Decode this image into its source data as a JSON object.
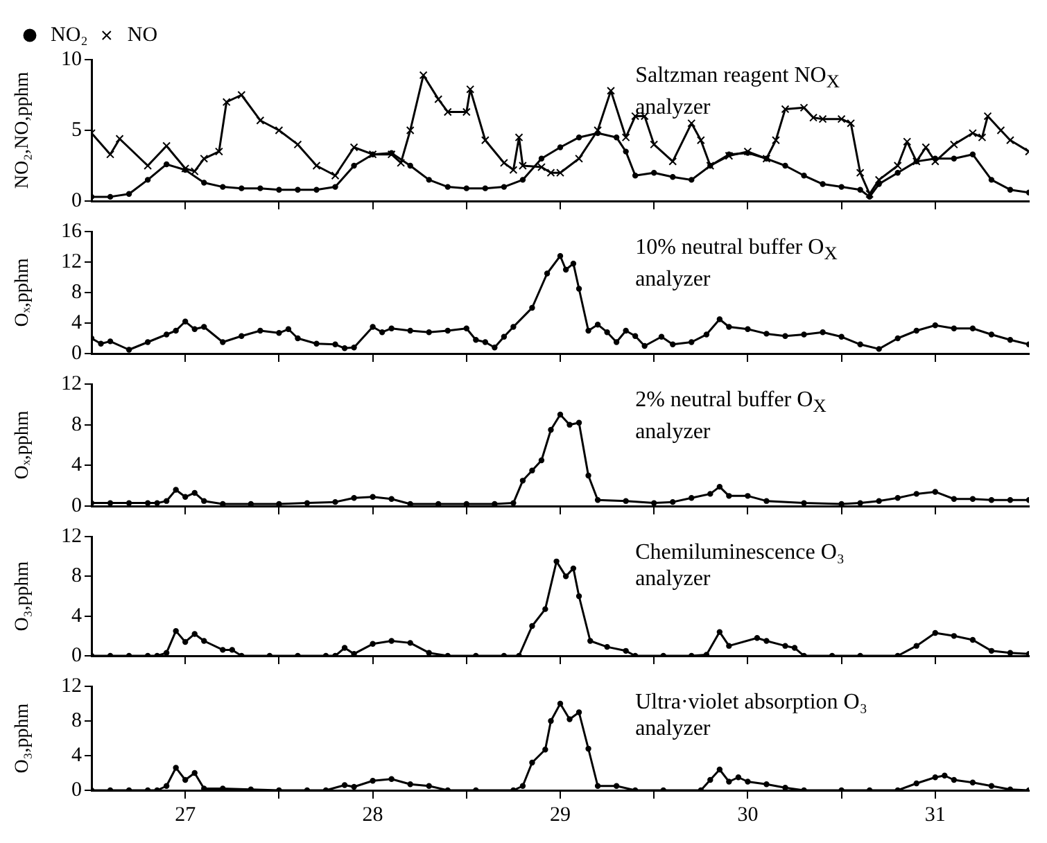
{
  "chart_data": [
    {
      "type": "line",
      "ylabel": "NO₂,NO,pphm",
      "annotations": [
        "Saltzman reagent NO$_{X}$ analyzer"
      ],
      "legend": "top left",
      "tick_labels": "y",
      "xlim": [
        26.5,
        31.5
      ],
      "xticks": [
        27,
        {
          "value": 27.5,
          "label": null
        },
        28,
        {
          "value": 28.5,
          "label": null
        },
        29,
        {
          "value": 29.5,
          "label": null
        },
        30,
        {
          "value": 30.5,
          "label": null
        },
        31
      ],
      "ylim": [
        0,
        10
      ],
      "yticks": [
        0,
        5,
        10
      ],
      "series": [
        {
          "name": "NO₂",
          "color": "#000000",
          "marker": "circle",
          "x": [
            26.5,
            26.6,
            26.7,
            26.8,
            26.9,
            27.0,
            27.1,
            27.2,
            27.3,
            27.4,
            27.5,
            27.6,
            27.7,
            27.8,
            27.9,
            28.0,
            28.1,
            28.2,
            28.3,
            28.4,
            28.5,
            28.6,
            28.7,
            28.8,
            28.9,
            29.0,
            29.1,
            29.2,
            29.3,
            29.35,
            29.4,
            29.5,
            29.6,
            29.7,
            29.8,
            29.9,
            30.0,
            30.1,
            30.2,
            30.3,
            30.4,
            30.5,
            30.6,
            30.65,
            30.7,
            30.8,
            30.9,
            31.0,
            31.1,
            31.2,
            31.3,
            31.4,
            31.5
          ],
          "values": [
            0.3,
            0.3,
            0.5,
            1.5,
            2.6,
            2.2,
            1.3,
            1.0,
            0.9,
            0.9,
            0.8,
            0.8,
            0.8,
            1.0,
            2.5,
            3.3,
            3.4,
            2.5,
            1.5,
            1.0,
            0.9,
            0.9,
            1.0,
            1.5,
            3.0,
            3.8,
            4.5,
            4.8,
            4.5,
            3.5,
            1.8,
            2.0,
            1.7,
            1.5,
            2.5,
            3.3,
            3.4,
            3.0,
            2.5,
            1.8,
            1.2,
            1.0,
            0.8,
            0.3,
            1.2,
            2.0,
            2.8,
            3.0,
            3.0,
            3.3,
            1.5,
            0.8,
            0.6
          ]
        },
        {
          "name": "NO",
          "color": "#000000",
          "marker": "cross",
          "x": [
            26.5,
            26.6,
            26.65,
            26.8,
            26.9,
            27.0,
            27.05,
            27.1,
            27.18,
            27.22,
            27.3,
            27.4,
            27.5,
            27.6,
            27.7,
            27.8,
            27.9,
            28.0,
            28.1,
            28.15,
            28.2,
            28.27,
            28.35,
            28.4,
            28.5,
            28.52,
            28.6,
            28.7,
            28.75,
            28.78,
            28.8,
            28.9,
            28.95,
            29.0,
            29.1,
            29.2,
            29.27,
            29.35,
            29.4,
            29.45,
            29.5,
            29.6,
            29.7,
            29.75,
            29.8,
            29.9,
            30.0,
            30.1,
            30.15,
            30.2,
            30.3,
            30.35,
            30.4,
            30.5,
            30.55,
            30.6,
            30.65,
            30.7,
            30.8,
            30.85,
            30.9,
            30.95,
            31.0,
            31.1,
            31.2,
            31.25,
            31.28,
            31.35,
            31.4,
            31.5
          ],
          "values": [
            4.8,
            3.3,
            4.4,
            2.5,
            3.9,
            2.3,
            2.1,
            3.0,
            3.5,
            7.0,
            7.5,
            5.7,
            5.0,
            4.0,
            2.5,
            1.8,
            3.8,
            3.3,
            3.3,
            2.7,
            5.0,
            8.9,
            7.2,
            6.3,
            6.3,
            7.9,
            4.3,
            2.7,
            2.2,
            4.5,
            2.5,
            2.4,
            2.0,
            2.0,
            3.0,
            5.0,
            7.8,
            4.5,
            6.0,
            6.0,
            4.0,
            2.8,
            5.5,
            4.3,
            2.5,
            3.2,
            3.5,
            3.0,
            4.3,
            6.5,
            6.6,
            5.9,
            5.8,
            5.8,
            5.5,
            2.0,
            0.5,
            1.5,
            2.5,
            4.2,
            2.8,
            3.8,
            2.8,
            4.0,
            4.8,
            4.5,
            6.0,
            5.0,
            4.3,
            3.5
          ]
        }
      ]
    },
    {
      "type": "line",
      "ylabel": "Oₓ,pphm",
      "annotations": [
        "10% neutral buffer O$_{X}$ analyzer"
      ],
      "marker": "circle",
      "tick_labels": "y",
      "xlim": [
        26.5,
        31.5
      ],
      "xticks": [
        27,
        {
          "value": 27.5,
          "label": null
        },
        28,
        {
          "value": 28.5,
          "label": null
        },
        29,
        {
          "value": 29.5,
          "label": null
        },
        30,
        {
          "value": 30.5,
          "label": null
        },
        31
      ],
      "ylim": [
        0,
        16
      ],
      "yticks": [
        0,
        4,
        8,
        12,
        16
      ],
      "series": [
        {
          "color": "#000000",
          "x": [
            26.5,
            26.55,
            26.6,
            26.7,
            26.8,
            26.9,
            26.95,
            27.0,
            27.05,
            27.1,
            27.2,
            27.3,
            27.4,
            27.5,
            27.55,
            27.6,
            27.7,
            27.8,
            27.85,
            27.9,
            28.0,
            28.05,
            28.1,
            28.2,
            28.3,
            28.4,
            28.5,
            28.55,
            28.6,
            28.65,
            28.7,
            28.75,
            28.85,
            28.93,
            29.0,
            29.03,
            29.07,
            29.1,
            29.15,
            29.2,
            29.25,
            29.3,
            29.35,
            29.4,
            29.45,
            29.54,
            29.6,
            29.7,
            29.78,
            29.85,
            29.9,
            30.0,
            30.1,
            30.2,
            30.3,
            30.4,
            30.5,
            30.6,
            30.7,
            30.8,
            30.9,
            31.0,
            31.1,
            31.2,
            31.3,
            31.4,
            31.5
          ],
          "values": [
            2.0,
            1.3,
            1.6,
            0.5,
            1.5,
            2.5,
            3.0,
            4.2,
            3.2,
            3.5,
            1.5,
            2.3,
            3.0,
            2.7,
            3.2,
            2.0,
            1.3,
            1.2,
            0.7,
            0.8,
            3.5,
            2.8,
            3.3,
            3.0,
            2.8,
            3.0,
            3.3,
            1.8,
            1.5,
            0.8,
            2.2,
            3.5,
            6.0,
            10.5,
            12.8,
            11.0,
            11.8,
            8.5,
            3.0,
            3.8,
            2.8,
            1.5,
            3.0,
            2.3,
            1.0,
            2.2,
            1.2,
            1.5,
            2.5,
            4.5,
            3.5,
            3.2,
            2.6,
            2.3,
            2.5,
            2.8,
            2.2,
            1.2,
            0.6,
            2.0,
            3.0,
            3.7,
            3.3,
            3.3,
            2.5,
            1.8,
            1.2
          ]
        }
      ]
    },
    {
      "type": "line",
      "ylabel": "Oₓ,pphm",
      "annotations": [
        "2% neutral buffer O$_{X}$ analyzer"
      ],
      "marker": "circle",
      "tick_labels": "y",
      "xlim": [
        26.5,
        31.5
      ],
      "xticks": [
        27,
        {
          "value": 27.5,
          "label": null
        },
        28,
        {
          "value": 28.5,
          "label": null
        },
        29,
        {
          "value": 29.5,
          "label": null
        },
        30,
        {
          "value": 30.5,
          "label": null
        },
        31
      ],
      "ylim": [
        0,
        12
      ],
      "yticks": [
        0,
        4,
        8,
        12
      ],
      "series": [
        {
          "color": "#000000",
          "x": [
            26.5,
            26.6,
            26.7,
            26.8,
            26.85,
            26.9,
            26.95,
            27.0,
            27.05,
            27.1,
            27.2,
            27.35,
            27.5,
            27.65,
            27.8,
            27.9,
            28.0,
            28.1,
            28.2,
            28.35,
            28.5,
            28.65,
            28.75,
            28.8,
            28.85,
            28.9,
            28.95,
            29.0,
            29.05,
            29.1,
            29.15,
            29.2,
            29.35,
            29.5,
            29.6,
            29.7,
            29.8,
            29.85,
            29.9,
            30.0,
            30.1,
            30.3,
            30.5,
            30.6,
            30.7,
            30.8,
            30.9,
            31.0,
            31.1,
            31.2,
            31.3,
            31.4,
            31.5
          ],
          "values": [
            0.3,
            0.3,
            0.3,
            0.3,
            0.3,
            0.5,
            1.6,
            0.9,
            1.3,
            0.5,
            0.2,
            0.2,
            0.2,
            0.3,
            0.4,
            0.8,
            0.9,
            0.7,
            0.2,
            0.2,
            0.2,
            0.2,
            0.3,
            2.5,
            3.5,
            4.5,
            7.5,
            9.0,
            8.0,
            8.2,
            3.0,
            0.6,
            0.5,
            0.3,
            0.4,
            0.8,
            1.2,
            1.9,
            1.0,
            1.0,
            0.5,
            0.3,
            0.2,
            0.3,
            0.5,
            0.8,
            1.2,
            1.4,
            0.7,
            0.7,
            0.6,
            0.6,
            0.6
          ]
        }
      ]
    },
    {
      "type": "line",
      "ylabel": "O₃,pphm",
      "annotations": [
        "Chemiluminescence O₃ analyzer"
      ],
      "marker": "circle",
      "tick_labels": "y",
      "xlim": [
        26.5,
        31.5
      ],
      "xticks": [
        27,
        {
          "value": 27.5,
          "label": null
        },
        28,
        {
          "value": 28.5,
          "label": null
        },
        29,
        {
          "value": 29.5,
          "label": null
        },
        30,
        {
          "value": 30.5,
          "label": null
        },
        31
      ],
      "ylim": [
        0,
        12
      ],
      "yticks": [
        0,
        4,
        8,
        12
      ],
      "series": [
        {
          "color": "#000000",
          "x": [
            26.5,
            26.6,
            26.7,
            26.8,
            26.85,
            26.9,
            26.95,
            27.0,
            27.05,
            27.1,
            27.2,
            27.25,
            27.3,
            27.45,
            27.6,
            27.75,
            27.8,
            27.85,
            27.9,
            28.0,
            28.1,
            28.2,
            28.3,
            28.4,
            28.55,
            28.7,
            28.78,
            28.85,
            28.92,
            28.98,
            29.03,
            29.07,
            29.1,
            29.16,
            29.25,
            29.35,
            29.4,
            29.55,
            29.7,
            29.78,
            29.85,
            29.9,
            30.05,
            30.1,
            30.2,
            30.25,
            30.3,
            30.45,
            30.6,
            30.8,
            30.9,
            31.0,
            31.1,
            31.2,
            31.3,
            31.4,
            31.5
          ],
          "values": [
            0,
            0,
            0,
            0,
            0,
            0.3,
            2.5,
            1.4,
            2.2,
            1.5,
            0.6,
            0.6,
            0,
            0,
            0,
            0,
            0,
            0.8,
            0.2,
            1.2,
            1.5,
            1.3,
            0.3,
            0,
            0,
            0,
            0,
            3.0,
            4.7,
            9.5,
            8.0,
            8.8,
            6.0,
            1.5,
            0.9,
            0.5,
            0,
            0,
            0,
            0.1,
            2.4,
            1.0,
            1.8,
            1.5,
            1.0,
            0.8,
            0,
            0,
            0,
            0,
            1.0,
            2.3,
            2.0,
            1.6,
            0.5,
            0.3,
            0.2
          ]
        }
      ]
    },
    {
      "type": "line",
      "ylabel": "O₃,pphm",
      "annotations": [
        "Ultra·violet  absorption O₃ analyzer"
      ],
      "marker": "circle",
      "xlim": [
        26.5,
        31.5
      ],
      "xticks": [
        27,
        {
          "value": 27.5,
          "label": null
        },
        28,
        {
          "value": 28.5,
          "label": null
        },
        29,
        {
          "value": 29.5,
          "label": null
        },
        30,
        {
          "value": 30.5,
          "label": null
        },
        31
      ],
      "ylim": [
        0,
        12
      ],
      "yticks": [
        0,
        4,
        8,
        12
      ],
      "series": [
        {
          "color": "#000000",
          "x": [
            26.5,
            26.6,
            26.7,
            26.8,
            26.85,
            26.9,
            26.95,
            27.0,
            27.05,
            27.1,
            27.2,
            27.35,
            27.5,
            27.65,
            27.75,
            27.85,
            27.9,
            28.0,
            28.1,
            28.2,
            28.3,
            28.4,
            28.55,
            28.75,
            28.8,
            28.85,
            28.92,
            28.95,
            29.0,
            29.05,
            29.1,
            29.15,
            29.2,
            29.3,
            29.4,
            29.55,
            29.75,
            29.8,
            29.85,
            29.9,
            29.95,
            30.0,
            30.1,
            30.2,
            30.3,
            30.5,
            30.65,
            30.8,
            30.9,
            31.0,
            31.05,
            31.1,
            31.2,
            31.3,
            31.4,
            31.5
          ],
          "values": [
            0,
            0,
            0,
            0,
            0,
            0.5,
            2.6,
            1.2,
            2.0,
            0.2,
            0.2,
            0.1,
            0,
            0,
            0,
            0.6,
            0.4,
            1.1,
            1.3,
            0.7,
            0.5,
            0,
            0,
            0,
            0.5,
            3.2,
            4.7,
            8.0,
            10.0,
            8.2,
            9.0,
            4.8,
            0.5,
            0.5,
            0,
            0,
            0,
            1.2,
            2.4,
            1.0,
            1.5,
            1.0,
            0.7,
            0.3,
            0,
            0,
            0,
            0,
            0.8,
            1.5,
            1.7,
            1.2,
            0.9,
            0.5,
            0.1,
            0
          ]
        }
      ]
    }
  ]
}
